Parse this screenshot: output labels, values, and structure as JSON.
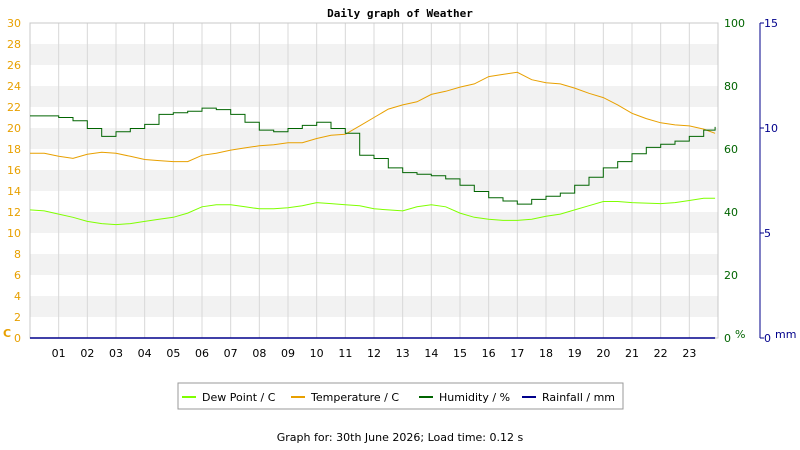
{
  "chart_data": {
    "type": "line",
    "title": "Daily graph of Weather",
    "x": {
      "tick_labels": [
        "01",
        "02",
        "03",
        "04",
        "05",
        "06",
        "07",
        "08",
        "09",
        "10",
        "11",
        "12",
        "13",
        "14",
        "15",
        "16",
        "17",
        "18",
        "19",
        "20",
        "21",
        "22",
        "23"
      ],
      "range_hours": [
        0,
        24
      ]
    },
    "y_left": {
      "unit": "C",
      "min": 0,
      "max": 30,
      "step": 2,
      "color": "#e8a000"
    },
    "y_mid": {
      "unit": "%",
      "min": 0,
      "max": 100,
      "ticks": [
        0,
        20,
        40,
        60,
        80,
        100
      ],
      "color": "#006400"
    },
    "y_right": {
      "unit": "mm",
      "min": 0,
      "max": 15,
      "ticks": [
        0,
        5,
        10,
        15
      ],
      "color": "#00008b"
    },
    "grid": true,
    "legend_position": "bottom",
    "series": [
      {
        "name": "Dew Point / C",
        "axis": "left",
        "color": "#7fff00",
        "points": [
          [
            0,
            12.2
          ],
          [
            0.5,
            12.1
          ],
          [
            1,
            11.8
          ],
          [
            1.5,
            11.5
          ],
          [
            2,
            11.1
          ],
          [
            2.5,
            10.9
          ],
          [
            3,
            10.8
          ],
          [
            3.5,
            10.9
          ],
          [
            4,
            11.1
          ],
          [
            4.5,
            11.3
          ],
          [
            5,
            11.5
          ],
          [
            5.5,
            11.9
          ],
          [
            6,
            12.5
          ],
          [
            6.5,
            12.7
          ],
          [
            7,
            12.7
          ],
          [
            7.5,
            12.5
          ],
          [
            8,
            12.3
          ],
          [
            8.5,
            12.3
          ],
          [
            9,
            12.4
          ],
          [
            9.5,
            12.6
          ],
          [
            10,
            12.9
          ],
          [
            10.5,
            12.8
          ],
          [
            11,
            12.7
          ],
          [
            11.5,
            12.6
          ],
          [
            12,
            12.3
          ],
          [
            12.5,
            12.2
          ],
          [
            13,
            12.1
          ],
          [
            13.5,
            12.5
          ],
          [
            14,
            12.7
          ],
          [
            14.5,
            12.5
          ],
          [
            15,
            11.9
          ],
          [
            15.5,
            11.5
          ],
          [
            16,
            11.3
          ],
          [
            16.5,
            11.2
          ],
          [
            17,
            11.2
          ],
          [
            17.5,
            11.3
          ],
          [
            18,
            11.6
          ],
          [
            18.5,
            11.8
          ],
          [
            19,
            12.2
          ],
          [
            19.5,
            12.6
          ],
          [
            20,
            13.0
          ],
          [
            20.5,
            13.0
          ],
          [
            21,
            12.9
          ],
          [
            22,
            12.8
          ],
          [
            22.5,
            12.9
          ],
          [
            23,
            13.1
          ],
          [
            23.5,
            13.3
          ],
          [
            23.9,
            13.3
          ]
        ]
      },
      {
        "name": "Temperature / C",
        "axis": "left",
        "color": "#e8a000",
        "points": [
          [
            0,
            17.6
          ],
          [
            0.5,
            17.6
          ],
          [
            1,
            17.3
          ],
          [
            1.5,
            17.1
          ],
          [
            2,
            17.5
          ],
          [
            2.5,
            17.7
          ],
          [
            3,
            17.6
          ],
          [
            3.5,
            17.3
          ],
          [
            4,
            17.0
          ],
          [
            4.5,
            16.9
          ],
          [
            5,
            16.8
          ],
          [
            5.5,
            16.8
          ],
          [
            6,
            17.4
          ],
          [
            6.5,
            17.6
          ],
          [
            7,
            17.9
          ],
          [
            7.5,
            18.1
          ],
          [
            8,
            18.3
          ],
          [
            8.5,
            18.4
          ],
          [
            9,
            18.6
          ],
          [
            9.5,
            18.6
          ],
          [
            10,
            19.0
          ],
          [
            10.5,
            19.3
          ],
          [
            11,
            19.4
          ],
          [
            11.5,
            20.2
          ],
          [
            12,
            21.0
          ],
          [
            12.5,
            21.8
          ],
          [
            13,
            22.2
          ],
          [
            13.5,
            22.5
          ],
          [
            14,
            23.2
          ],
          [
            14.5,
            23.5
          ],
          [
            15,
            23.9
          ],
          [
            15.5,
            24.2
          ],
          [
            16,
            24.9
          ],
          [
            16.5,
            25.1
          ],
          [
            17,
            25.3
          ],
          [
            17.5,
            24.6
          ],
          [
            18,
            24.3
          ],
          [
            18.5,
            24.2
          ],
          [
            19,
            23.8
          ],
          [
            19.5,
            23.3
          ],
          [
            20,
            22.9
          ],
          [
            20.5,
            22.2
          ],
          [
            21,
            21.4
          ],
          [
            21.5,
            20.9
          ],
          [
            22,
            20.5
          ],
          [
            22.5,
            20.3
          ],
          [
            23,
            20.2
          ],
          [
            23.5,
            19.9
          ],
          [
            23.9,
            19.5
          ]
        ]
      },
      {
        "name": "Humidity / %",
        "axis": "mid",
        "color": "#006400",
        "step": true,
        "points": [
          [
            0,
            70.5
          ],
          [
            1,
            70.0
          ],
          [
            1.5,
            69.0
          ],
          [
            2,
            66.5
          ],
          [
            2.5,
            64.0
          ],
          [
            3,
            65.5
          ],
          [
            3.5,
            66.5
          ],
          [
            4,
            67.8
          ],
          [
            4.5,
            71.0
          ],
          [
            5,
            71.5
          ],
          [
            5.5,
            72.0
          ],
          [
            6,
            73.0
          ],
          [
            6.5,
            72.5
          ],
          [
            7,
            71.0
          ],
          [
            7.5,
            68.5
          ],
          [
            8,
            66.0
          ],
          [
            8.5,
            65.5
          ],
          [
            9,
            66.5
          ],
          [
            9.5,
            67.5
          ],
          [
            10,
            68.5
          ],
          [
            10.5,
            66.5
          ],
          [
            11,
            65.0
          ],
          [
            11.5,
            58.0
          ],
          [
            12,
            57.0
          ],
          [
            12.5,
            54.0
          ],
          [
            13,
            52.5
          ],
          [
            13.5,
            52.0
          ],
          [
            14,
            51.5
          ],
          [
            14.5,
            50.5
          ],
          [
            15,
            48.5
          ],
          [
            15.5,
            46.5
          ],
          [
            16,
            44.5
          ],
          [
            16.5,
            43.5
          ],
          [
            17,
            42.5
          ],
          [
            17.5,
            44.0
          ],
          [
            18,
            45.0
          ],
          [
            18.5,
            46.0
          ],
          [
            19,
            48.5
          ],
          [
            19.5,
            51.0
          ],
          [
            20,
            54.0
          ],
          [
            20.5,
            56.0
          ],
          [
            21,
            58.5
          ],
          [
            21.5,
            60.5
          ],
          [
            22,
            61.5
          ],
          [
            22.5,
            62.5
          ],
          [
            23,
            64.0
          ],
          [
            23.5,
            66.0
          ],
          [
            23.9,
            67.0
          ]
        ]
      },
      {
        "name": "Rainfall / mm",
        "axis": "right",
        "color": "#00008b",
        "points": [
          [
            0,
            0
          ],
          [
            23.9,
            0
          ]
        ]
      }
    ]
  },
  "footer": {
    "text": "Graph for: 30th June 2026; Load time: 0.12 s"
  }
}
